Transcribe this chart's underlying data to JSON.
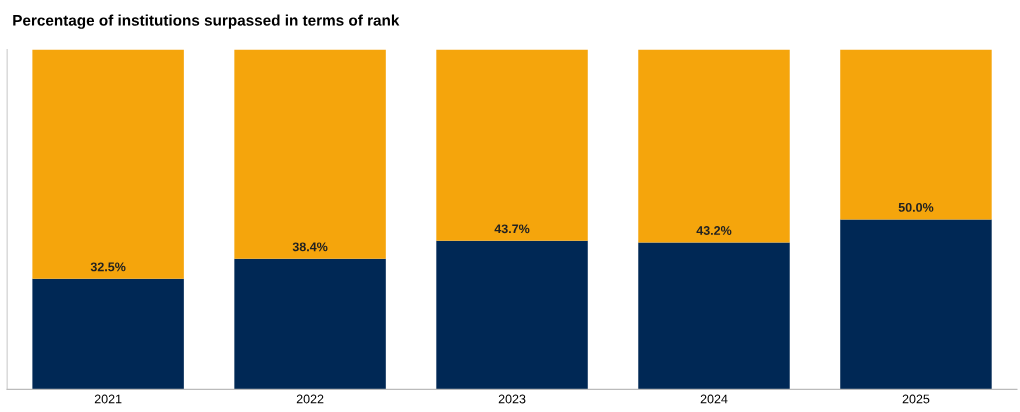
{
  "chart_data": {
    "type": "bar",
    "title": "Percentage of institutions surpassed in terms of rank",
    "categories": [
      "2021",
      "2022",
      "2023",
      "2024",
      "2025"
    ],
    "stacked": true,
    "ylim": [
      0,
      100
    ],
    "tick_labels": "x",
    "grid": false,
    "legend": false,
    "series": [
      {
        "color": "#002855",
        "values": [
          32.5,
          38.4,
          43.7,
          43.2,
          50.0
        ],
        "value_labels": [
          "32.5%",
          "38.4%",
          "43.7%",
          "43.2%",
          "50.0%"
        ]
      },
      {
        "color": "#f5a50c",
        "values": [
          67.5,
          61.6,
          56.3,
          56.8,
          50.0
        ]
      }
    ]
  }
}
